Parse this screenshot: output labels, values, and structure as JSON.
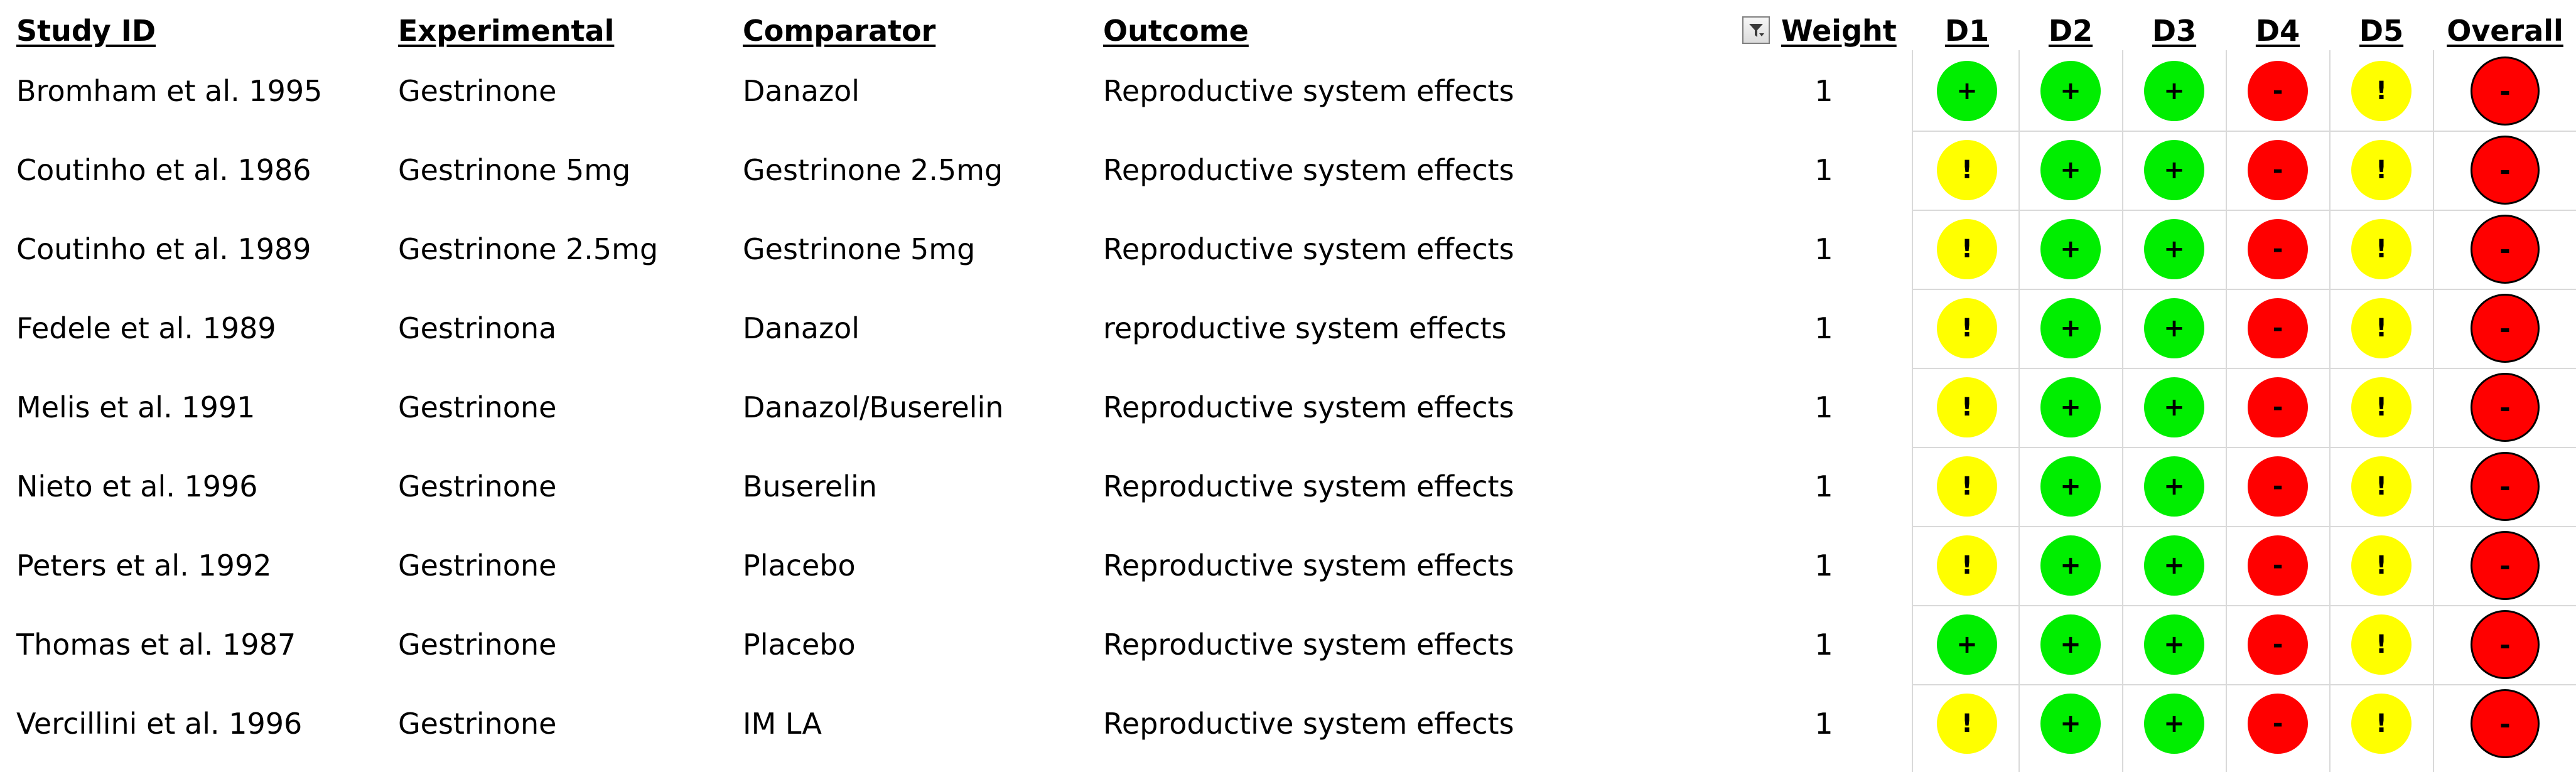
{
  "headers": {
    "study_id": "Study ID",
    "experimental": "Experimental",
    "comparator": "Comparator",
    "outcome": "Outcome",
    "weight": "Weight",
    "d1": "D1",
    "d2": "D2",
    "d3": "D3",
    "d4": "D4",
    "d5": "D5",
    "overall": "Overall"
  },
  "filter_icon": "filter-dropdown-icon",
  "risk_colors": {
    "low": "#00ee00",
    "some": "#ffff00",
    "high": "#ff0000"
  },
  "risk_symbols": {
    "low": "+",
    "some": "!",
    "high": "-"
  },
  "studies": [
    {
      "study_id": "Bromham et al. 1995",
      "experimental": "Gestrinone",
      "comparator": "Danazol",
      "outcome": "Reproductive system effects",
      "weight": "1",
      "d1": "low",
      "d2": "low",
      "d3": "low",
      "d4": "high",
      "d5": "some",
      "overall": "high"
    },
    {
      "study_id": "Coutinho et al. 1986",
      "experimental": "Gestrinone 5mg",
      "comparator": "Gestrinone 2.5mg",
      "outcome": "Reproductive system effects",
      "weight": "1",
      "d1": "some",
      "d2": "low",
      "d3": "low",
      "d4": "high",
      "d5": "some",
      "overall": "high"
    },
    {
      "study_id": "Coutinho et al. 1989",
      "experimental": "Gestrinone 2.5mg",
      "comparator": "Gestrinone 5mg",
      "outcome": "Reproductive system effects",
      "weight": "1",
      "d1": "some",
      "d2": "low",
      "d3": "low",
      "d4": "high",
      "d5": "some",
      "overall": "high"
    },
    {
      "study_id": "Fedele et al. 1989",
      "experimental": "Gestrinona",
      "comparator": "Danazol",
      "outcome": "reproductive system effects",
      "weight": "1",
      "d1": "some",
      "d2": "low",
      "d3": "low",
      "d4": "high",
      "d5": "some",
      "overall": "high"
    },
    {
      "study_id": "Melis et al. 1991",
      "experimental": "Gestrinone",
      "comparator": "Danazol/Buserelin",
      "outcome": "Reproductive system effects",
      "weight": "1",
      "d1": "some",
      "d2": "low",
      "d3": "low",
      "d4": "high",
      "d5": "some",
      "overall": "high"
    },
    {
      "study_id": "Nieto et al. 1996",
      "experimental": "Gestrinone",
      "comparator": "Buserelin",
      "outcome": "Reproductive system effects",
      "weight": "1",
      "d1": "some",
      "d2": "low",
      "d3": "low",
      "d4": "high",
      "d5": "some",
      "overall": "high"
    },
    {
      "study_id": "Peters et al. 1992",
      "experimental": "Gestrinone",
      "comparator": "Placebo",
      "outcome": "Reproductive system effects",
      "weight": "1",
      "d1": "some",
      "d2": "low",
      "d3": "low",
      "d4": "high",
      "d5": "some",
      "overall": "high"
    },
    {
      "study_id": "Thomas et al. 1987",
      "experimental": "Gestrinone",
      "comparator": "Placebo",
      "outcome": "Reproductive system effects",
      "weight": "1",
      "d1": "low",
      "d2": "low",
      "d3": "low",
      "d4": "high",
      "d5": "some",
      "overall": "high"
    },
    {
      "study_id": "Vercillini et al. 1996",
      "experimental": "Gestrinone",
      "comparator": "IM LA",
      "outcome": "Reproductive system effects",
      "weight": "1",
      "d1": "some",
      "d2": "low",
      "d3": "low",
      "d4": "high",
      "d5": "some",
      "overall": "high"
    }
  ]
}
